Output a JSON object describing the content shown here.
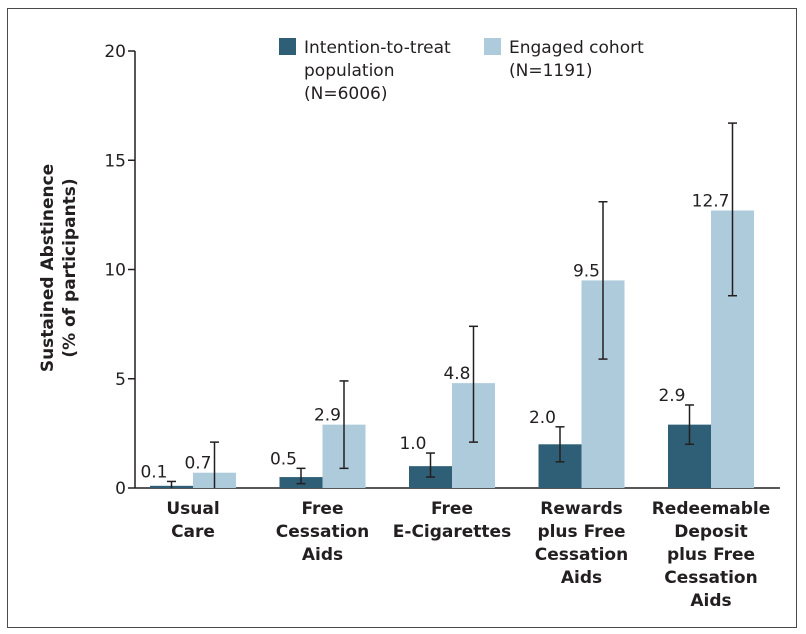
{
  "chart_data": {
    "type": "bar",
    "ylabel": [
      "Sustained Abstinence",
      "(% of participants)"
    ],
    "ylim": [
      0,
      20
    ],
    "yticks": [
      "0",
      "5",
      "10",
      "15",
      "20"
    ],
    "categories": [
      [
        "Usual",
        "Care"
      ],
      [
        "Free",
        "Cessation",
        "Aids"
      ],
      [
        "Free",
        "E-Cigarettes"
      ],
      [
        "Rewards",
        "plus Free",
        "Cessation",
        "Aids"
      ],
      [
        "Redeemable",
        "Deposit",
        "plus Free",
        "Cessation",
        "Aids"
      ]
    ],
    "series": [
      {
        "name": [
          "Intention-to-treat",
          "population",
          "(N=6006)"
        ],
        "color": "#2e5f77",
        "values": [
          0.1,
          0.5,
          1.0,
          2.0,
          2.9
        ],
        "labels": [
          "0.1",
          "0.5",
          "1.0",
          "2.0",
          "2.9"
        ],
        "ci_low": [
          0.0,
          0.2,
          0.5,
          1.2,
          2.0
        ],
        "ci_high": [
          0.3,
          0.9,
          1.6,
          2.8,
          3.8
        ]
      },
      {
        "name": [
          "Engaged cohort",
          "(N=1191)"
        ],
        "color": "#aecbdb",
        "values": [
          0.7,
          2.9,
          4.8,
          9.5,
          12.7
        ],
        "labels": [
          "0.7",
          "2.9",
          "4.8",
          "9.5",
          "12.7"
        ],
        "ci_low": [
          0.0,
          0.9,
          2.1,
          5.9,
          8.8
        ],
        "ci_high": [
          2.1,
          4.9,
          7.4,
          13.1,
          16.7
        ]
      }
    ],
    "legend": "top",
    "grid": false
  }
}
